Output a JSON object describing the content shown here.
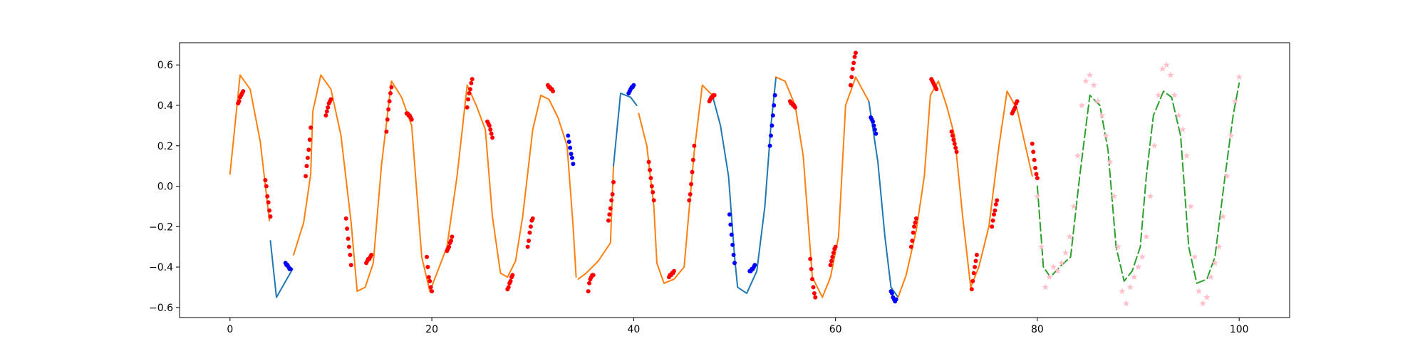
{
  "chart_data": {
    "type": "line",
    "title": "",
    "xlabel": "",
    "ylabel": "",
    "xlim": [
      -5,
      105
    ],
    "ylim": [
      -0.65,
      0.71
    ],
    "x_ticks": [
      0,
      20,
      40,
      60,
      80,
      100
    ],
    "y_ticks": [
      -0.6,
      -0.4,
      -0.2,
      0.0,
      0.2,
      0.4,
      0.6
    ],
    "x_tick_labels": [
      "0",
      "20",
      "40",
      "60",
      "80",
      "100"
    ],
    "y_tick_labels": [
      "−0.6",
      "−0.4",
      "−0.2",
      "0.0",
      "0.2",
      "0.4",
      "0.6"
    ],
    "grid": false,
    "legend": "none",
    "colors": {
      "blue_line": "#1f77b4",
      "orange_line": "#ff7f0e",
      "green_dashed": "#2ca02c",
      "red_points": "#ff0000",
      "blue_points": "#0000ff",
      "pink_stars": "#ffc0cb"
    },
    "series": [
      {
        "style": "line",
        "color": "orange",
        "x": [
          0,
          1,
          2,
          3,
          3.9
        ],
        "y": [
          0.06,
          0.55,
          0.48,
          0.22,
          -0.17
        ]
      },
      {
        "style": "line",
        "color": "blue",
        "x": [
          4,
          4.6,
          5.4,
          6.2
        ],
        "y": [
          -0.27,
          -0.55,
          -0.48,
          -0.41
        ]
      },
      {
        "style": "line",
        "color": "orange",
        "x": [
          6.3,
          7.3,
          8.0,
          8.2,
          9.0,
          10.0,
          11.0,
          12.0,
          12.6,
          13.4,
          14.2,
          15.0,
          16.0,
          17.0,
          18.0,
          19.0,
          19.8,
          20.5,
          21.5,
          22.5,
          23.5,
          24.4,
          25.3,
          26.0,
          26.8,
          27.5,
          28.3,
          29.0,
          30.0,
          30.8,
          31.6,
          32.5,
          33.4,
          34.0,
          34.3
        ],
        "y": [
          -0.34,
          -0.18,
          0.06,
          0.37,
          0.55,
          0.48,
          0.25,
          -0.18,
          -0.52,
          -0.5,
          -0.38,
          0.1,
          0.52,
          0.44,
          0.3,
          -0.35,
          -0.52,
          -0.43,
          -0.3,
          0.05,
          0.5,
          0.4,
          0.28,
          -0.15,
          -0.43,
          -0.45,
          -0.37,
          -0.15,
          0.28,
          0.45,
          0.43,
          0.34,
          0.2,
          -0.2,
          -0.45
        ]
      },
      {
        "style": "line",
        "color": "orange",
        "x": [
          34.5,
          35.3,
          36.5,
          37.7,
          38.0
        ],
        "y": [
          -0.46,
          -0.43,
          -0.37,
          -0.28,
          0.1
        ]
      },
      {
        "style": "line",
        "color": "blue",
        "x": [
          38.0,
          38.7,
          39.7,
          40.3
        ],
        "y": [
          0.1,
          0.46,
          0.44,
          0.4
        ]
      },
      {
        "style": "line",
        "color": "orange",
        "x": [
          40.5,
          41.3,
          42.0,
          42.3,
          43.0,
          44.0,
          45.0,
          46.0,
          46.8,
          47.8
        ],
        "y": [
          0.36,
          0.2,
          -0.1,
          -0.38,
          -0.48,
          -0.46,
          -0.4,
          0.17,
          0.5,
          0.45
        ]
      },
      {
        "style": "line",
        "color": "blue",
        "x": [
          47.8,
          48.6,
          49.4,
          50.0,
          50.3,
          51.2,
          52.2,
          53.0,
          53.6,
          54.1
        ],
        "y": [
          0.45,
          0.3,
          0.05,
          -0.35,
          -0.5,
          -0.53,
          -0.42,
          -0.1,
          0.3,
          0.54
        ]
      },
      {
        "style": "line",
        "color": "orange",
        "x": [
          54.1,
          55.0,
          56.0,
          56.8,
          57.7,
          58.7,
          59.5,
          60.3,
          61.0,
          62.0,
          63.3
        ],
        "y": [
          0.54,
          0.52,
          0.4,
          0.15,
          -0.45,
          -0.55,
          -0.45,
          -0.25,
          0.4,
          0.54,
          0.42
        ]
      },
      {
        "style": "line",
        "color": "blue",
        "x": [
          63.3,
          64.2,
          64.9,
          65.5,
          66.2
        ],
        "y": [
          0.42,
          0.12,
          -0.25,
          -0.5,
          -0.55
        ]
      },
      {
        "style": "line",
        "color": "orange",
        "x": [
          66.2,
          67.0,
          68.0,
          68.8,
          69.4,
          70.2,
          71.0,
          71.8,
          72.6,
          73.4,
          74.2,
          75.2,
          76.2,
          77.0,
          78.0,
          79.5
        ],
        "y": [
          -0.55,
          -0.44,
          -0.22,
          0.05,
          0.45,
          0.52,
          0.4,
          0.25,
          -0.15,
          -0.5,
          -0.4,
          -0.2,
          0.2,
          0.47,
          0.38,
          0.05
        ]
      },
      {
        "style": "dashed",
        "color": "green",
        "x": [
          80.0,
          80.6,
          81.3,
          82.2,
          83.3,
          84.2,
          85.2,
          86.2,
          87.0,
          87.8,
          88.6,
          89.4,
          90.2,
          90.8,
          91.5,
          92.5,
          93.3,
          94.2,
          95.0,
          95.8,
          96.8,
          97.6,
          98.6,
          99.4,
          100.0
        ],
        "y": [
          0.0,
          -0.4,
          -0.45,
          -0.4,
          -0.35,
          0.05,
          0.45,
          0.4,
          0.18,
          -0.3,
          -0.47,
          -0.42,
          -0.3,
          0.05,
          0.35,
          0.47,
          0.44,
          0.25,
          -0.3,
          -0.48,
          -0.46,
          -0.35,
          0.05,
          0.35,
          0.51
        ]
      }
    ],
    "red_points": {
      "x": [
        0.8,
        0.9,
        1.0,
        1.1,
        1.2,
        1.3,
        3.5,
        3.6,
        3.7,
        3.8,
        3.9,
        4.0,
        7.5,
        7.6,
        7.7,
        7.8,
        7.9,
        8.0,
        9.5,
        9.6,
        9.7,
        9.8,
        9.9,
        10.0,
        11.5,
        11.6,
        11.7,
        11.8,
        11.9,
        12.0,
        13.5,
        13.6,
        13.7,
        13.8,
        13.9,
        14.0,
        15.5,
        15.6,
        15.7,
        15.8,
        15.9,
        16.0,
        17.5,
        17.6,
        17.7,
        17.8,
        17.9,
        18.0,
        19.5,
        19.6,
        19.7,
        19.8,
        19.9,
        20.0,
        21.5,
        21.6,
        21.7,
        21.8,
        21.9,
        22.0,
        23.5,
        23.6,
        23.7,
        23.8,
        23.9,
        24.0,
        25.5,
        25.6,
        25.7,
        25.8,
        25.9,
        26.0,
        27.5,
        27.6,
        27.7,
        27.8,
        27.9,
        28.0,
        29.5,
        29.6,
        29.7,
        29.8,
        29.9,
        30.0,
        31.5,
        31.6,
        31.7,
        31.8,
        31.9,
        32.0,
        35.5,
        35.6,
        35.7,
        35.8,
        35.9,
        36.0,
        37.5,
        37.6,
        37.7,
        37.8,
        37.9,
        38.0,
        41.5,
        41.6,
        41.7,
        41.8,
        41.9,
        42.0,
        43.5,
        43.6,
        43.7,
        43.8,
        43.9,
        44.0,
        45.5,
        45.6,
        45.7,
        45.8,
        45.9,
        46.0,
        47.5,
        47.6,
        47.7,
        47.8,
        47.9,
        48.0,
        55.5,
        55.6,
        55.7,
        55.8,
        55.9,
        56.0,
        57.5,
        57.6,
        57.7,
        57.8,
        57.9,
        58.0,
        59.5,
        59.6,
        59.7,
        59.8,
        59.9,
        60.0,
        61.5,
        61.6,
        61.7,
        61.8,
        61.9,
        62.0,
        67.5,
        67.6,
        67.7,
        67.8,
        67.9,
        68.0,
        69.5,
        69.6,
        69.7,
        69.8,
        69.9,
        70.0,
        71.5,
        71.6,
        71.7,
        71.8,
        71.9,
        72.0,
        73.5,
        73.6,
        73.7,
        73.8,
        73.9,
        74.0,
        75.5,
        75.6,
        75.7,
        75.8,
        75.9,
        76.0,
        77.5,
        77.6,
        77.7,
        77.8,
        77.9,
        78.0,
        79.5,
        79.6,
        79.7,
        79.8,
        79.9,
        80.0
      ],
      "y": [
        0.41,
        0.42,
        0.44,
        0.45,
        0.46,
        0.47,
        0.03,
        0.0,
        -0.05,
        -0.08,
        -0.12,
        -0.15,
        0.05,
        0.1,
        0.14,
        0.18,
        0.23,
        0.29,
        0.35,
        0.37,
        0.39,
        0.41,
        0.42,
        0.43,
        -0.16,
        -0.21,
        -0.26,
        -0.3,
        -0.34,
        -0.39,
        -0.38,
        -0.37,
        -0.36,
        -0.36,
        -0.35,
        -0.34,
        0.27,
        0.33,
        0.38,
        0.42,
        0.46,
        0.49,
        0.36,
        0.36,
        0.35,
        0.35,
        0.34,
        0.33,
        -0.35,
        -0.4,
        -0.45,
        -0.47,
        -0.5,
        -0.52,
        -0.32,
        -0.31,
        -0.3,
        -0.28,
        -0.27,
        -0.25,
        0.39,
        0.43,
        0.46,
        0.48,
        0.51,
        0.53,
        0.32,
        0.31,
        0.3,
        0.28,
        0.26,
        0.24,
        -0.51,
        -0.5,
        -0.48,
        -0.47,
        -0.45,
        -0.44,
        -0.3,
        -0.27,
        -0.23,
        -0.2,
        -0.17,
        -0.16,
        0.5,
        0.49,
        0.49,
        0.48,
        0.48,
        0.47,
        -0.52,
        -0.48,
        -0.46,
        -0.45,
        -0.44,
        -0.44,
        -0.17,
        -0.14,
        -0.11,
        -0.07,
        -0.04,
        0.02,
        0.12,
        0.08,
        0.04,
        0.0,
        -0.03,
        -0.07,
        -0.45,
        -0.44,
        -0.44,
        -0.43,
        -0.43,
        -0.42,
        -0.07,
        -0.04,
        0.01,
        0.07,
        0.13,
        0.2,
        0.42,
        0.43,
        0.44,
        0.44,
        0.45,
        0.45,
        0.42,
        0.41,
        0.41,
        0.4,
        0.4,
        0.39,
        -0.36,
        -0.41,
        -0.46,
        -0.5,
        -0.53,
        -0.55,
        -0.39,
        -0.37,
        -0.35,
        -0.33,
        -0.31,
        -0.3,
        0.5,
        0.54,
        0.58,
        0.61,
        0.64,
        0.66,
        -0.3,
        -0.27,
        -0.23,
        -0.2,
        -0.18,
        -0.16,
        0.53,
        0.52,
        0.51,
        0.5,
        0.49,
        0.48,
        0.27,
        0.25,
        0.23,
        0.21,
        0.19,
        0.17,
        -0.51,
        -0.47,
        -0.43,
        -0.4,
        -0.37,
        -0.34,
        -0.2,
        -0.17,
        -0.14,
        -0.12,
        -0.09,
        -0.07,
        0.36,
        0.37,
        0.38,
        0.39,
        0.41,
        0.42,
        0.21,
        0.17,
        0.13,
        0.09,
        0.06,
        0.04
      ]
    },
    "blue_points": {
      "x": [
        5.5,
        5.6,
        5.7,
        5.8,
        5.9,
        6.0,
        33.5,
        33.6,
        33.7,
        33.8,
        33.9,
        34.0,
        39.5,
        39.6,
        39.7,
        39.8,
        39.9,
        40.0,
        49.5,
        49.6,
        49.7,
        49.8,
        49.9,
        50.0,
        51.5,
        51.6,
        51.7,
        51.8,
        51.9,
        52.0,
        53.5,
        53.6,
        53.7,
        53.8,
        53.9,
        54.0,
        63.5,
        63.6,
        63.7,
        63.8,
        63.9,
        64.0,
        65.5,
        65.6,
        65.7,
        65.8,
        65.9,
        66.0
      ],
      "y": [
        -0.38,
        -0.39,
        -0.39,
        -0.4,
        -0.41,
        -0.41,
        0.25,
        0.22,
        0.19,
        0.16,
        0.14,
        0.11,
        0.46,
        0.47,
        0.48,
        0.49,
        0.49,
        0.5,
        -0.14,
        -0.19,
        -0.24,
        -0.29,
        -0.34,
        -0.38,
        -0.42,
        -0.42,
        -0.41,
        -0.41,
        -0.4,
        -0.39,
        0.2,
        0.25,
        0.3,
        0.35,
        0.4,
        0.45,
        0.34,
        0.33,
        0.32,
        0.3,
        0.28,
        0.26,
        -0.52,
        -0.53,
        -0.55,
        -0.56,
        -0.57,
        -0.56
      ]
    },
    "pink_stars": {
      "x": [
        80.0,
        80.4,
        80.8,
        81.2,
        81.6,
        82.0,
        82.4,
        82.8,
        83.2,
        83.6,
        84.0,
        84.4,
        84.8,
        85.2,
        85.6,
        86.0,
        86.4,
        86.8,
        87.2,
        87.6,
        88.0,
        88.4,
        88.8,
        89.2,
        89.6,
        90.0,
        90.4,
        90.8,
        91.2,
        91.6,
        92.0,
        92.4,
        92.8,
        93.2,
        93.6,
        94.0,
        94.4,
        94.8,
        95.2,
        95.6,
        96.0,
        96.4,
        96.8,
        97.2,
        97.6,
        98.0,
        98.4,
        98.8,
        99.2,
        99.6,
        100.0
      ],
      "y": [
        -0.05,
        -0.3,
        -0.5,
        -0.45,
        -0.4,
        -0.42,
        -0.38,
        -0.33,
        -0.25,
        -0.1,
        0.15,
        0.4,
        0.52,
        0.55,
        0.5,
        0.42,
        0.35,
        0.25,
        0.12,
        -0.05,
        -0.3,
        -0.52,
        -0.58,
        -0.5,
        -0.45,
        -0.4,
        -0.35,
        -0.25,
        -0.05,
        0.2,
        0.45,
        0.58,
        0.6,
        0.55,
        0.45,
        0.35,
        0.28,
        0.15,
        -0.1,
        -0.35,
        -0.52,
        -0.58,
        -0.55,
        -0.45,
        -0.38,
        -0.3,
        -0.15,
        0.05,
        0.25,
        0.42,
        0.54
      ]
    }
  }
}
